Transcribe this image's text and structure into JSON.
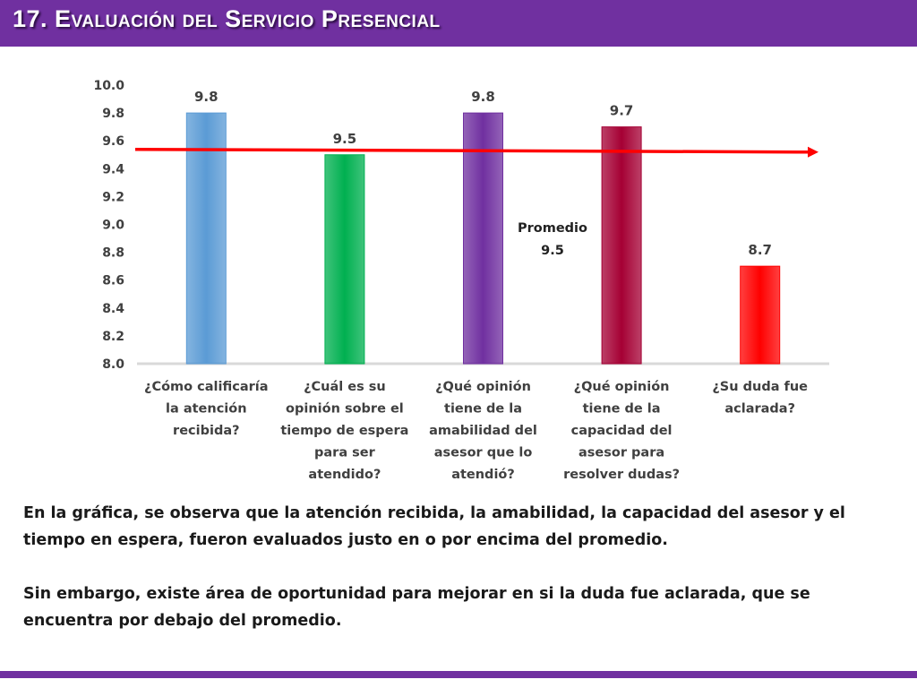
{
  "header": {
    "title": "17. Evaluación del Servicio Presencial"
  },
  "chart_data": {
    "type": "bar",
    "categories": [
      [
        "¿Cómo calificaría",
        "la atención",
        "recibida?"
      ],
      [
        "¿Cuál es su",
        "opinión sobre el",
        "tiempo de espera",
        "para ser",
        "atendido?"
      ],
      [
        "¿Qué opinión",
        "tiene de la",
        "amabilidad del",
        "asesor que lo",
        "atendió?"
      ],
      [
        "¿Qué opinión",
        "tiene de la",
        "capacidad del",
        "asesor para",
        "resolver dudas?"
      ],
      [
        "¿Su duda fue",
        "aclarada?"
      ]
    ],
    "values": [
      9.8,
      9.5,
      9.8,
      9.7,
      8.7
    ],
    "data_labels": [
      "9.8",
      "9.5",
      "9.8",
      "9.7",
      "8.7"
    ],
    "colors": [
      "#5b9bd5",
      "#00b050",
      "#7030a0",
      "#a50034",
      "#ff0000"
    ],
    "ylim": [
      8.0,
      10.0
    ],
    "yticks": [
      "8.0",
      "8.2",
      "8.4",
      "8.6",
      "8.8",
      "9.0",
      "9.2",
      "9.4",
      "9.6",
      "9.8",
      "10.0"
    ],
    "grid": false,
    "average": {
      "value": 9.5,
      "label": "Promedio",
      "value_label": "9.5",
      "color": "#ff0000"
    }
  },
  "text": {
    "paragraph1": "En la gráfica, se observa que la atención recibida, la amabilidad, la capacidad del asesor y el tiempo en espera, fueron evaluados justo en o por encima del promedio.",
    "paragraph2": "Sin embargo, existe área de oportunidad para mejorar en si la duda fue aclarada, que se encuentra por debajo del promedio."
  }
}
